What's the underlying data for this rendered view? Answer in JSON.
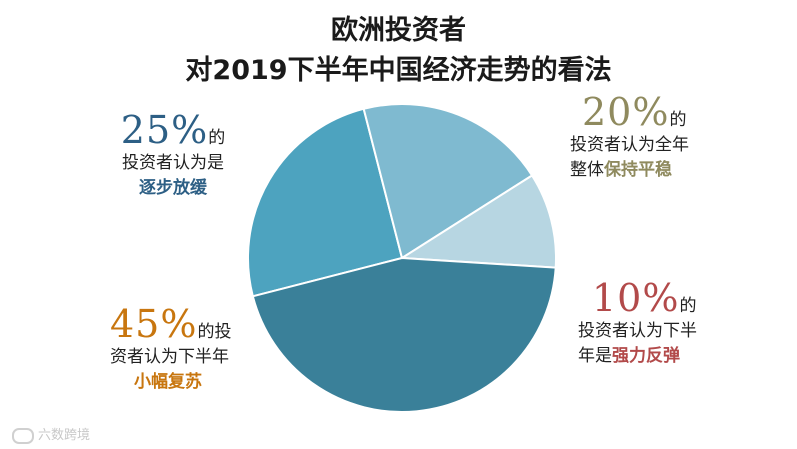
{
  "chart_data": {
    "type": "pie",
    "title": "欧洲投资者",
    "subtitle": "对2019下半年中国经济走势的看法",
    "slices": [
      {
        "label": "逐步放缓",
        "value": 25,
        "color": "#4da3bf"
      },
      {
        "label": "保持平稳",
        "value": 20,
        "color": "#7fbad0"
      },
      {
        "label": "强力反弹",
        "value": 10,
        "color": "#b7d6e2"
      },
      {
        "label": "小幅复苏",
        "value": 45,
        "color": "#3a8099"
      }
    ]
  },
  "annotations": {
    "slow": {
      "pct": "25%",
      "pct_suffix": "的",
      "line2": "投资者认为是",
      "keyword": "逐步放缓",
      "color": "#2d5f85"
    },
    "stable": {
      "pct": "20%",
      "pct_suffix": "的",
      "line2": "投资者认为全年",
      "line3_prefix": "整体",
      "keyword": "保持平稳",
      "color": "#8f8a5e"
    },
    "rebound": {
      "pct": "10%",
      "pct_suffix": "的",
      "line2": "投资者认为下半",
      "line3_prefix": "年是",
      "keyword": "强力反弹",
      "color": "#b24a4a"
    },
    "recovery": {
      "pct": "45%",
      "pct_suffix": "的投",
      "line2": "资者认为下半年",
      "keyword": "小幅复苏",
      "color": "#c8760f"
    }
  },
  "watermark": "六数跨境"
}
